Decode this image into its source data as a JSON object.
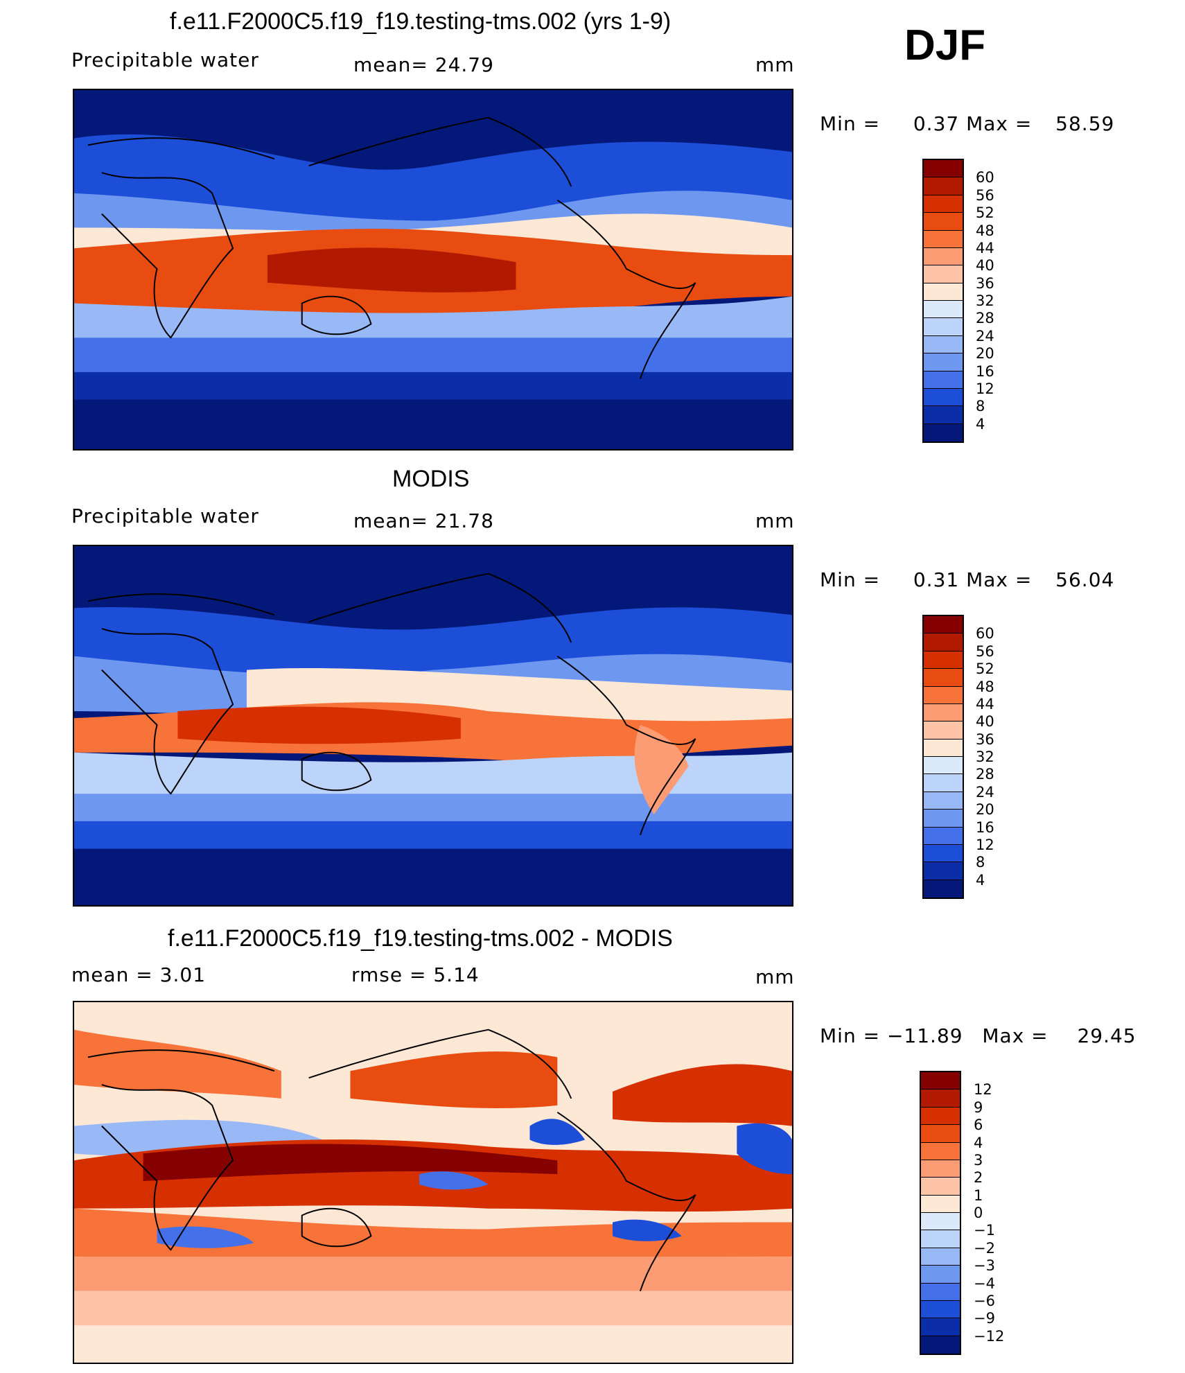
{
  "season": "DJF",
  "panels": [
    {
      "id": "model",
      "title": "f.e11.F2000C5.f19_f19.testing-tms.002 (yrs 1-9)",
      "left_label": "Precipitable  water",
      "center_label": "mean=   24.79",
      "units": "mm",
      "stats": {
        "min_label": "Min  =",
        "min": "0.37",
        "max_label": "Max  =",
        "max": "58.59"
      },
      "colorbar": {
        "labels": [
          "60",
          "56",
          "52",
          "48",
          "44",
          "40",
          "36",
          "32",
          "28",
          "24",
          "20",
          "16",
          "12",
          "8",
          "4"
        ],
        "colors": [
          "#850000",
          "#b21a00",
          "#d63000",
          "#e84c10",
          "#f7733a",
          "#fc9c75",
          "#fec4a8",
          "#fde8d5",
          "#dce9fb",
          "#bdd4fa",
          "#98b8f6",
          "#6e97f0",
          "#4471ea",
          "#1d4ed8",
          "#0b2ea8",
          "#031878"
        ]
      }
    },
    {
      "id": "obs",
      "title": "MODIS",
      "left_label": "Precipitable  water",
      "center_label": "mean=   21.78",
      "units": "mm",
      "stats": {
        "min_label": "Min  =",
        "min": "0.31",
        "max_label": "Max  =",
        "max": "56.04"
      },
      "colorbar": {
        "labels": [
          "60",
          "56",
          "52",
          "48",
          "44",
          "40",
          "36",
          "32",
          "28",
          "24",
          "20",
          "16",
          "12",
          "8",
          "4"
        ],
        "colors": [
          "#850000",
          "#b21a00",
          "#d63000",
          "#e84c10",
          "#f7733a",
          "#fc9c75",
          "#fec4a8",
          "#fde8d5",
          "#dce9fb",
          "#bdd4fa",
          "#98b8f6",
          "#6e97f0",
          "#4471ea",
          "#1d4ed8",
          "#0b2ea8",
          "#031878"
        ]
      }
    },
    {
      "id": "diff",
      "title": "f.e11.F2000C5.f19_f19.testing-tms.002 - MODIS",
      "left_label": "mean  =      3.01",
      "center_label": "rmse  =      5.14",
      "units": "mm",
      "stats": {
        "min_label": "Min  =",
        "min": "−11.89",
        "max_label": "Max  =",
        "max": "29.45"
      },
      "colorbar": {
        "labels": [
          "12",
          "9",
          "6",
          "4",
          "3",
          "2",
          "1",
          "0",
          "−1",
          "−2",
          "−3",
          "−4",
          "−6",
          "−9",
          "−12"
        ],
        "colors": [
          "#850000",
          "#b21a00",
          "#d63000",
          "#e84c10",
          "#f7733a",
          "#fc9c75",
          "#fec4a8",
          "#fde8d5",
          "#dce9fb",
          "#bdd4fa",
          "#98b8f6",
          "#6e97f0",
          "#4471ea",
          "#1d4ed8",
          "#0b2ea8",
          "#031878"
        ]
      }
    }
  ]
}
